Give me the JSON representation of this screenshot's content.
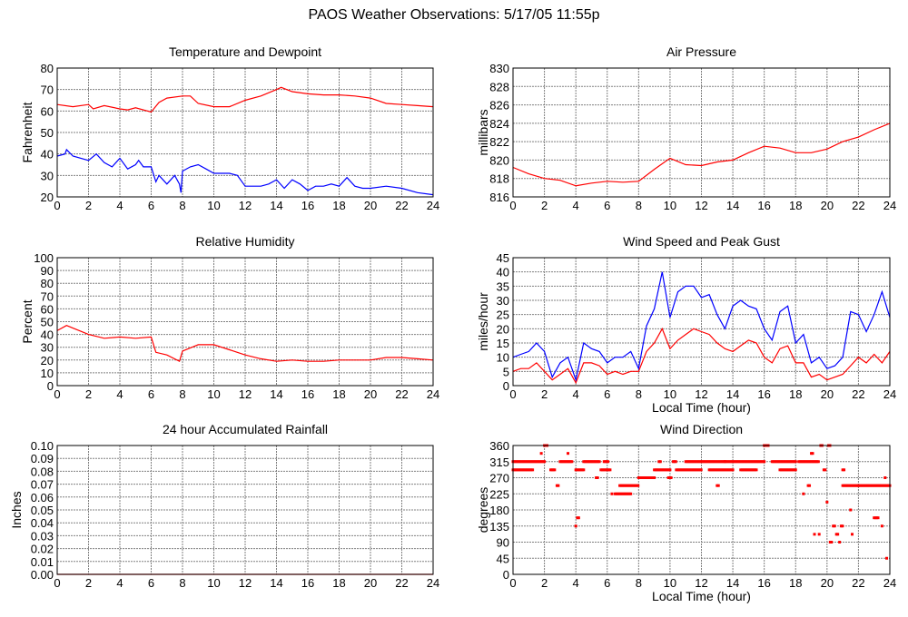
{
  "title": "PAOS Weather Observations: 5/17/05 11:55p",
  "colors": {
    "red": "#ff0000",
    "blue": "#0000ff",
    "grid": "#808080"
  },
  "chart_data": [
    {
      "id": "temp",
      "type": "line",
      "title": "Temperature and Dewpoint",
      "xlabel": "",
      "ylabel": "Fahrenheit",
      "xlim": [
        0,
        24
      ],
      "ylim": [
        20,
        80
      ],
      "xstep": 2,
      "ystep": 10,
      "ydec": 0,
      "grid": true,
      "series": [
        {
          "name": "Temperature",
          "color": "#ff0000",
          "x": [
            0,
            1,
            2,
            2.3,
            3,
            4,
            4.5,
            5,
            6,
            6.5,
            7,
            8,
            8.5,
            9,
            10,
            11,
            12,
            13,
            14,
            14.3,
            15,
            16,
            17,
            18,
            19,
            20,
            21,
            22,
            23,
            24
          ],
          "y": [
            63,
            62,
            63,
            61,
            62.5,
            61,
            60.5,
            61.5,
            59.5,
            64,
            66,
            67,
            67,
            63.5,
            62,
            62,
            65,
            67,
            70,
            71,
            69,
            68,
            67.5,
            67.5,
            67,
            66,
            63.5,
            63,
            62.5,
            62
          ]
        },
        {
          "name": "Dewpoint",
          "color": "#0000ff",
          "x": [
            0,
            0.5,
            0.6,
            1,
            2,
            2.5,
            3,
            3.5,
            4,
            4.5,
            5,
            5.2,
            5.5,
            6,
            6.3,
            6.5,
            7,
            7.5,
            7.8,
            7.9,
            8,
            8.5,
            9,
            9.5,
            10,
            11,
            11.5,
            12,
            12.5,
            13,
            13.5,
            14,
            14.5,
            15,
            15.5,
            16,
            16.5,
            17,
            17.5,
            18,
            18.5,
            19,
            19.5,
            20,
            21,
            22,
            23,
            24
          ],
          "y": [
            39,
            40,
            42,
            39,
            37,
            40,
            36,
            34,
            38,
            33,
            35,
            37,
            34,
            34,
            27,
            30,
            26,
            30,
            26,
            22,
            32,
            34,
            35,
            33,
            31,
            31,
            30,
            25,
            25,
            25,
            26,
            28,
            24,
            28,
            26,
            23,
            25,
            25,
            26,
            25,
            29,
            25,
            24,
            24,
            25,
            24,
            22,
            21
          ]
        }
      ]
    },
    {
      "id": "pressure",
      "type": "line",
      "title": "Air Pressure",
      "xlabel": "",
      "ylabel": "millibars",
      "xlim": [
        0,
        24
      ],
      "ylim": [
        816,
        830
      ],
      "xstep": 2,
      "ystep": 2,
      "ydec": 0,
      "grid": true,
      "series": [
        {
          "name": "Pressure",
          "color": "#ff0000",
          "x": [
            0,
            1,
            2,
            3,
            4,
            5,
            6,
            7,
            8,
            9,
            10,
            11,
            12,
            13,
            14,
            15,
            16,
            17,
            18,
            19,
            20,
            21,
            22,
            23,
            24
          ],
          "y": [
            819.2,
            818.5,
            818,
            817.8,
            817.2,
            817.5,
            817.7,
            817.6,
            817.7,
            819,
            820.2,
            819.5,
            819.4,
            819.8,
            820,
            820.8,
            821.5,
            821.3,
            820.8,
            820.8,
            821.2,
            822,
            822.5,
            823.3,
            824
          ]
        }
      ]
    },
    {
      "id": "humidity",
      "type": "line",
      "title": "Relative Humidity",
      "xlabel": "",
      "ylabel": "Percent",
      "xlim": [
        0,
        24
      ],
      "ylim": [
        0,
        100
      ],
      "xstep": 2,
      "ystep": 10,
      "ydec": 0,
      "grid": true,
      "series": [
        {
          "name": "Humidity",
          "color": "#ff0000",
          "x": [
            0,
            0.6,
            1,
            2,
            3,
            4,
            5,
            6,
            6.3,
            7,
            7.8,
            8,
            9,
            10,
            11,
            12,
            13,
            14,
            15,
            16,
            17,
            18,
            19,
            20,
            21,
            22,
            23,
            24
          ],
          "y": [
            43,
            47,
            45,
            40,
            37,
            38,
            37,
            38,
            26,
            24,
            19,
            27,
            32,
            32,
            28,
            24,
            21,
            19,
            20,
            19,
            19,
            20,
            20,
            20,
            22,
            22,
            21,
            20
          ]
        }
      ]
    },
    {
      "id": "wind",
      "type": "line",
      "title": "Wind Speed and Peak Gust",
      "xlabel": "Local Time (hour)",
      "ylabel": "miles/hour",
      "xlim": [
        0,
        24
      ],
      "ylim": [
        0,
        45
      ],
      "xstep": 2,
      "ystep": 5,
      "ydec": 0,
      "grid": true,
      "series": [
        {
          "name": "Wind Speed",
          "color": "#ff0000",
          "x": [
            0,
            0.5,
            1,
            1.5,
            2,
            2.5,
            3,
            3.5,
            4,
            4.5,
            5,
            5.5,
            6,
            6.5,
            7,
            7.5,
            8,
            8.5,
            9,
            9.5,
            10,
            10.5,
            11,
            11.5,
            12,
            12.5,
            13,
            13.5,
            14,
            14.5,
            15,
            15.5,
            16,
            16.5,
            17,
            17.5,
            18,
            18.5,
            19,
            19.5,
            20,
            20.5,
            21,
            21.5,
            22,
            22.5,
            23,
            23.5,
            24
          ],
          "y": [
            5,
            6,
            6,
            8,
            5,
            2,
            4,
            6,
            1,
            8,
            8,
            7,
            4,
            5,
            4,
            5,
            5,
            12,
            15,
            20,
            13,
            16,
            18,
            20,
            19,
            18,
            15,
            13,
            12,
            14,
            16,
            15,
            10,
            8,
            13,
            14,
            8,
            8,
            3,
            4,
            2,
            3,
            4,
            7,
            10,
            8,
            11,
            8,
            12
          ]
        },
        {
          "name": "Peak Gust",
          "color": "#0000ff",
          "x": [
            0,
            0.5,
            1,
            1.5,
            2,
            2.5,
            3,
            3.5,
            4,
            4.5,
            5,
            5.5,
            6,
            6.5,
            7,
            7.5,
            8,
            8.5,
            9,
            9.5,
            10,
            10.5,
            11,
            11.5,
            12,
            12.5,
            13,
            13.5,
            14,
            14.5,
            15,
            15.5,
            16,
            16.5,
            17,
            17.5,
            18,
            18.5,
            19,
            19.5,
            20,
            20.5,
            21,
            21.5,
            22,
            22.5,
            23,
            23.5,
            24
          ],
          "y": [
            10,
            11,
            12,
            15,
            12,
            3,
            8,
            10,
            2,
            15,
            13,
            12,
            8,
            10,
            10,
            12,
            6,
            21,
            27,
            40,
            24,
            33,
            35,
            35,
            31,
            32,
            25,
            20,
            28,
            30,
            28,
            27,
            20,
            16,
            26,
            28,
            15,
            18,
            8,
            10,
            6,
            7,
            10,
            26,
            25,
            19,
            25,
            33,
            24
          ]
        }
      ]
    },
    {
      "id": "rain",
      "type": "line",
      "title": "24 hour Accumulated Rainfall",
      "xlabel": "",
      "ylabel": "Inches",
      "xlim": [
        0,
        24
      ],
      "ylim": [
        0,
        0.1
      ],
      "xstep": 2,
      "ystep": 0.01,
      "ydec": 2,
      "grid": true,
      "series": [
        {
          "name": "Rainfall",
          "color": "#ff0000",
          "x": [
            0,
            24
          ],
          "y": [
            0,
            0
          ]
        }
      ]
    },
    {
      "id": "winddir",
      "type": "scatter",
      "title": "Wind Direction",
      "xlabel": "Local Time (hour)",
      "ylabel": "degrees",
      "xlim": [
        0,
        24
      ],
      "ylim": [
        0,
        360
      ],
      "xstep": 2,
      "ystep": 45,
      "ydec": 0,
      "grid": true,
      "runs_note": "runs of observations: [start hour, end hour, degrees]",
      "series": [
        {
          "name": "Direction",
          "color": "#ff0000",
          "runs": [
            [
              0,
              2,
              315
            ],
            [
              0,
              1.3,
              292
            ],
            [
              2,
              2.2,
              360
            ],
            [
              1.8,
              1.8,
              338
            ],
            [
              2.4,
              2.7,
              292
            ],
            [
              2.8,
              2.9,
              248
            ],
            [
              3,
              3.8,
              315
            ],
            [
              3.5,
              3.5,
              338
            ],
            [
              4,
              4,
              135
            ],
            [
              4.1,
              4.2,
              158
            ],
            [
              4,
              4.5,
              292
            ],
            [
              4.5,
              5.5,
              315
            ],
            [
              5.3,
              5.4,
              270
            ],
            [
              5.6,
              6.2,
              292
            ],
            [
              5.8,
              6.1,
              315
            ],
            [
              6.3,
              6.3,
              225
            ],
            [
              6.5,
              7.5,
              225
            ],
            [
              6.8,
              8,
              248
            ],
            [
              8,
              9,
              270
            ],
            [
              9,
              10,
              292
            ],
            [
              9.3,
              9.4,
              315
            ],
            [
              9.9,
              10.1,
              270
            ],
            [
              10.2,
              10.4,
              315
            ],
            [
              10.4,
              12,
              292
            ],
            [
              11,
              13.5,
              315
            ],
            [
              13,
              13.1,
              248
            ],
            [
              12.5,
              14,
              292
            ],
            [
              13.5,
              16,
              315
            ],
            [
              14.5,
              15.5,
              292
            ],
            [
              16,
              16.3,
              360
            ],
            [
              16.5,
              18,
              315
            ],
            [
              17,
              18,
              292
            ],
            [
              18.2,
              19.5,
              315
            ],
            [
              18.5,
              18.5,
              225
            ],
            [
              18.8,
              18.9,
              248
            ],
            [
              19,
              19.1,
              338
            ],
            [
              19.2,
              19.2,
              112
            ],
            [
              19.5,
              19.5,
              112
            ],
            [
              19.6,
              19.7,
              360
            ],
            [
              19.8,
              19.9,
              292
            ],
            [
              20,
              20,
              202
            ],
            [
              20.1,
              20.2,
              360
            ],
            [
              20.2,
              20.3,
              90
            ],
            [
              20.4,
              20.5,
              135
            ],
            [
              20.6,
              20.7,
              112
            ],
            [
              20.8,
              20.8,
              90
            ],
            [
              20.9,
              21,
              135
            ],
            [
              21,
              21.1,
              292
            ],
            [
              21,
              22,
              248
            ],
            [
              21.5,
              21.5,
              180
            ],
            [
              21.6,
              21.6,
              112
            ],
            [
              22,
              24,
              248
            ],
            [
              23,
              23.3,
              158
            ],
            [
              23.5,
              23.5,
              135
            ],
            [
              23.7,
              23.7,
              270
            ],
            [
              23.8,
              23.8,
              45
            ]
          ]
        }
      ]
    }
  ]
}
